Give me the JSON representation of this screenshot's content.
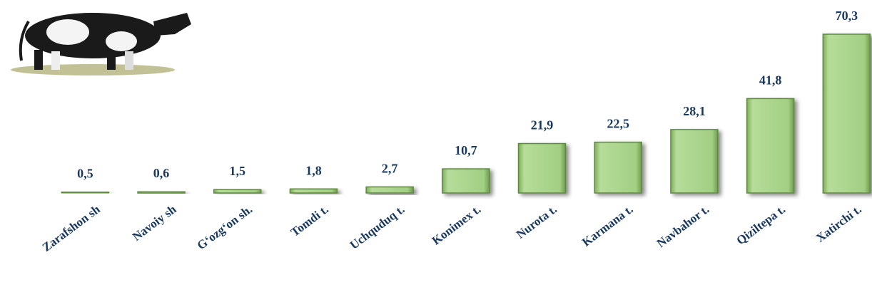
{
  "chart_data": {
    "type": "bar",
    "categories": [
      "Zarafshon sh",
      "Navoiy sh",
      "G‘ozg‘on sh.",
      "Tomdi t.",
      "Uchquduq t.",
      "Konimex t.",
      "Nurota t.",
      "Karmana t.",
      "Navbahor t.",
      "Qiziltepa t.",
      "Xatirchi t."
    ],
    "values": [
      0.5,
      0.6,
      1.5,
      1.8,
      2.7,
      10.7,
      21.9,
      22.5,
      28.1,
      41.8,
      70.3
    ],
    "value_labels": [
      "0,5",
      "0,6",
      "1,5",
      "1,8",
      "2,7",
      "10,7",
      "21,9",
      "22,5",
      "28,1",
      "41,8",
      "70,3"
    ],
    "color": "#a9d18e"
  }
}
